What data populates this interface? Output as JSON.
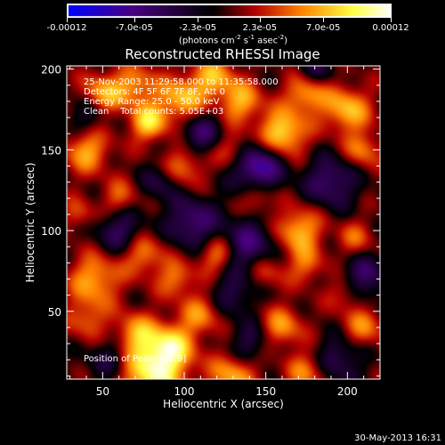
{
  "chart_data": {
    "type": "heatmap",
    "title": "Reconstructed RHESSI Image",
    "xlabel": "Heliocentric X (arcsec)",
    "ylabel": "Heliocentric Y (arcsec)",
    "xlim": [
      28,
      220
    ],
    "ylim": [
      8,
      202
    ],
    "x_ticks": [
      50,
      100,
      150,
      200
    ],
    "y_ticks": [
      50,
      100,
      150,
      200
    ],
    "colorbar": {
      "ticks": [
        "-0.00012",
        "-7.0e-05",
        "-2.3e-05",
        "2.3e-05",
        "7.0e-05",
        "0.00012"
      ],
      "tick_values": [
        -0.00012,
        -7e-05,
        -2.3e-05,
        2.3e-05,
        7e-05,
        0.00012
      ],
      "range": [
        -0.00012,
        0.00012
      ],
      "units_prefix": "(photons cm",
      "units_exp1": "-2",
      "units_mid": " s",
      "units_exp2": "-1",
      "units_mid2": " asec",
      "units_exp3": "-2",
      "units_suffix": ")",
      "colors": [
        "#0000ff",
        "#4b0082",
        "#000000",
        "#b40000",
        "#ff8000",
        "#ffff40",
        "#ffffff"
      ]
    },
    "annotations": {
      "time_range": "25-Nov-2003 11:29:58.000 to 11:35:58.000",
      "detectors": "Detectors: 4F 5F 6F 7F 8F, Att 0",
      "energy": "Energy Range: 25.0 - 50.0 keV",
      "clean": "Clean    Total counts: 5.05E+03",
      "peak": "Position of Peak: [81,9]"
    },
    "peak_position": [
      81,
      9
    ],
    "grid": false
  },
  "footer": {
    "timestamp": "30-May-2013 16:31"
  }
}
